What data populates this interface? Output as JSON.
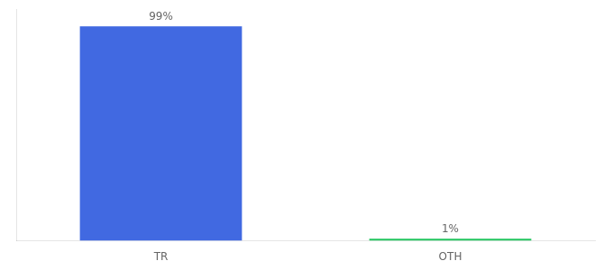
{
  "chart_data": {
    "type": "bar",
    "categories": [
      "TR",
      "OTH"
    ],
    "values": [
      99,
      1
    ],
    "value_labels": [
      "99%",
      "1%"
    ],
    "data_labels": true,
    "colors": [
      "#4169e1",
      "#22c55e"
    ],
    "ylim": [
      0,
      107
    ],
    "grid": false,
    "tick_labels": "x"
  }
}
